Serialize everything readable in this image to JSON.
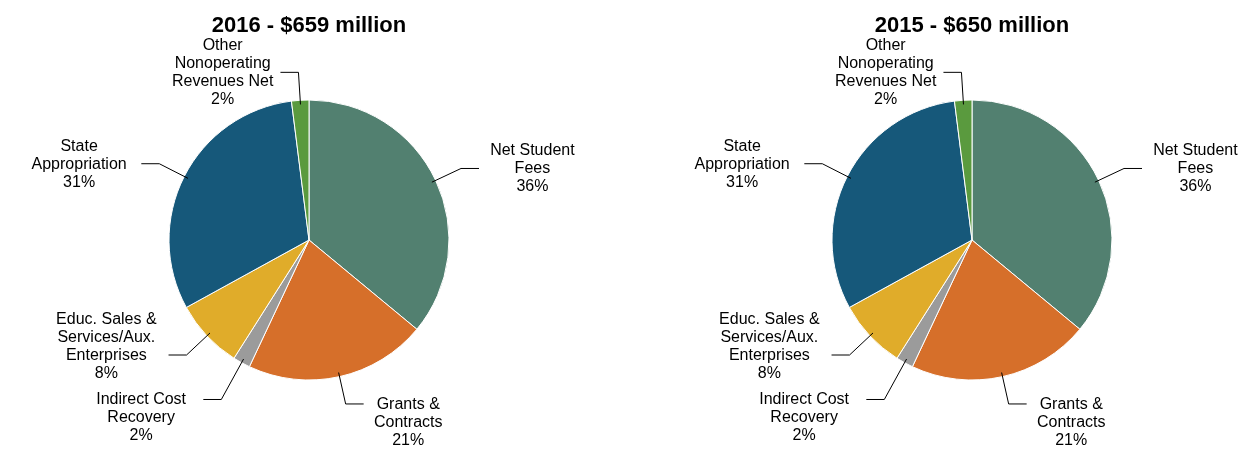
{
  "chart_data": [
    {
      "type": "pie",
      "title": "2016 - $659 million",
      "categories": [
        "Net Student Fees",
        "Grants & Contracts",
        "Indirect Cost Recovery",
        "Educ. Sales & Services/Aux. Enterprises",
        "State Appropriation",
        "Other Nonoperating Revenues Net"
      ],
      "values": [
        36,
        21,
        2,
        8,
        31,
        2
      ],
      "colors": [
        "#528070",
        "#d66f2a",
        "#9b9b9b",
        "#e0ac2a",
        "#16587a",
        "#5a9a3e"
      ],
      "value_labels": [
        "36%",
        "21%",
        "2%",
        "8%",
        "31%",
        "2%"
      ]
    },
    {
      "type": "pie",
      "title": "2015 - $650 million",
      "categories": [
        "Net Student Fees",
        "Grants & Contracts",
        "Indirect Cost Recovery",
        "Educ. Sales & Services/Aux. Enterprises",
        "State Appropriation",
        "Other Nonoperating Revenues Net"
      ],
      "values": [
        36,
        21,
        2,
        8,
        31,
        2
      ],
      "colors": [
        "#528070",
        "#d66f2a",
        "#9b9b9b",
        "#e0ac2a",
        "#16587a",
        "#5a9a3e"
      ],
      "value_labels": [
        "36%",
        "21%",
        "2%",
        "8%",
        "31%",
        "2%"
      ]
    }
  ]
}
